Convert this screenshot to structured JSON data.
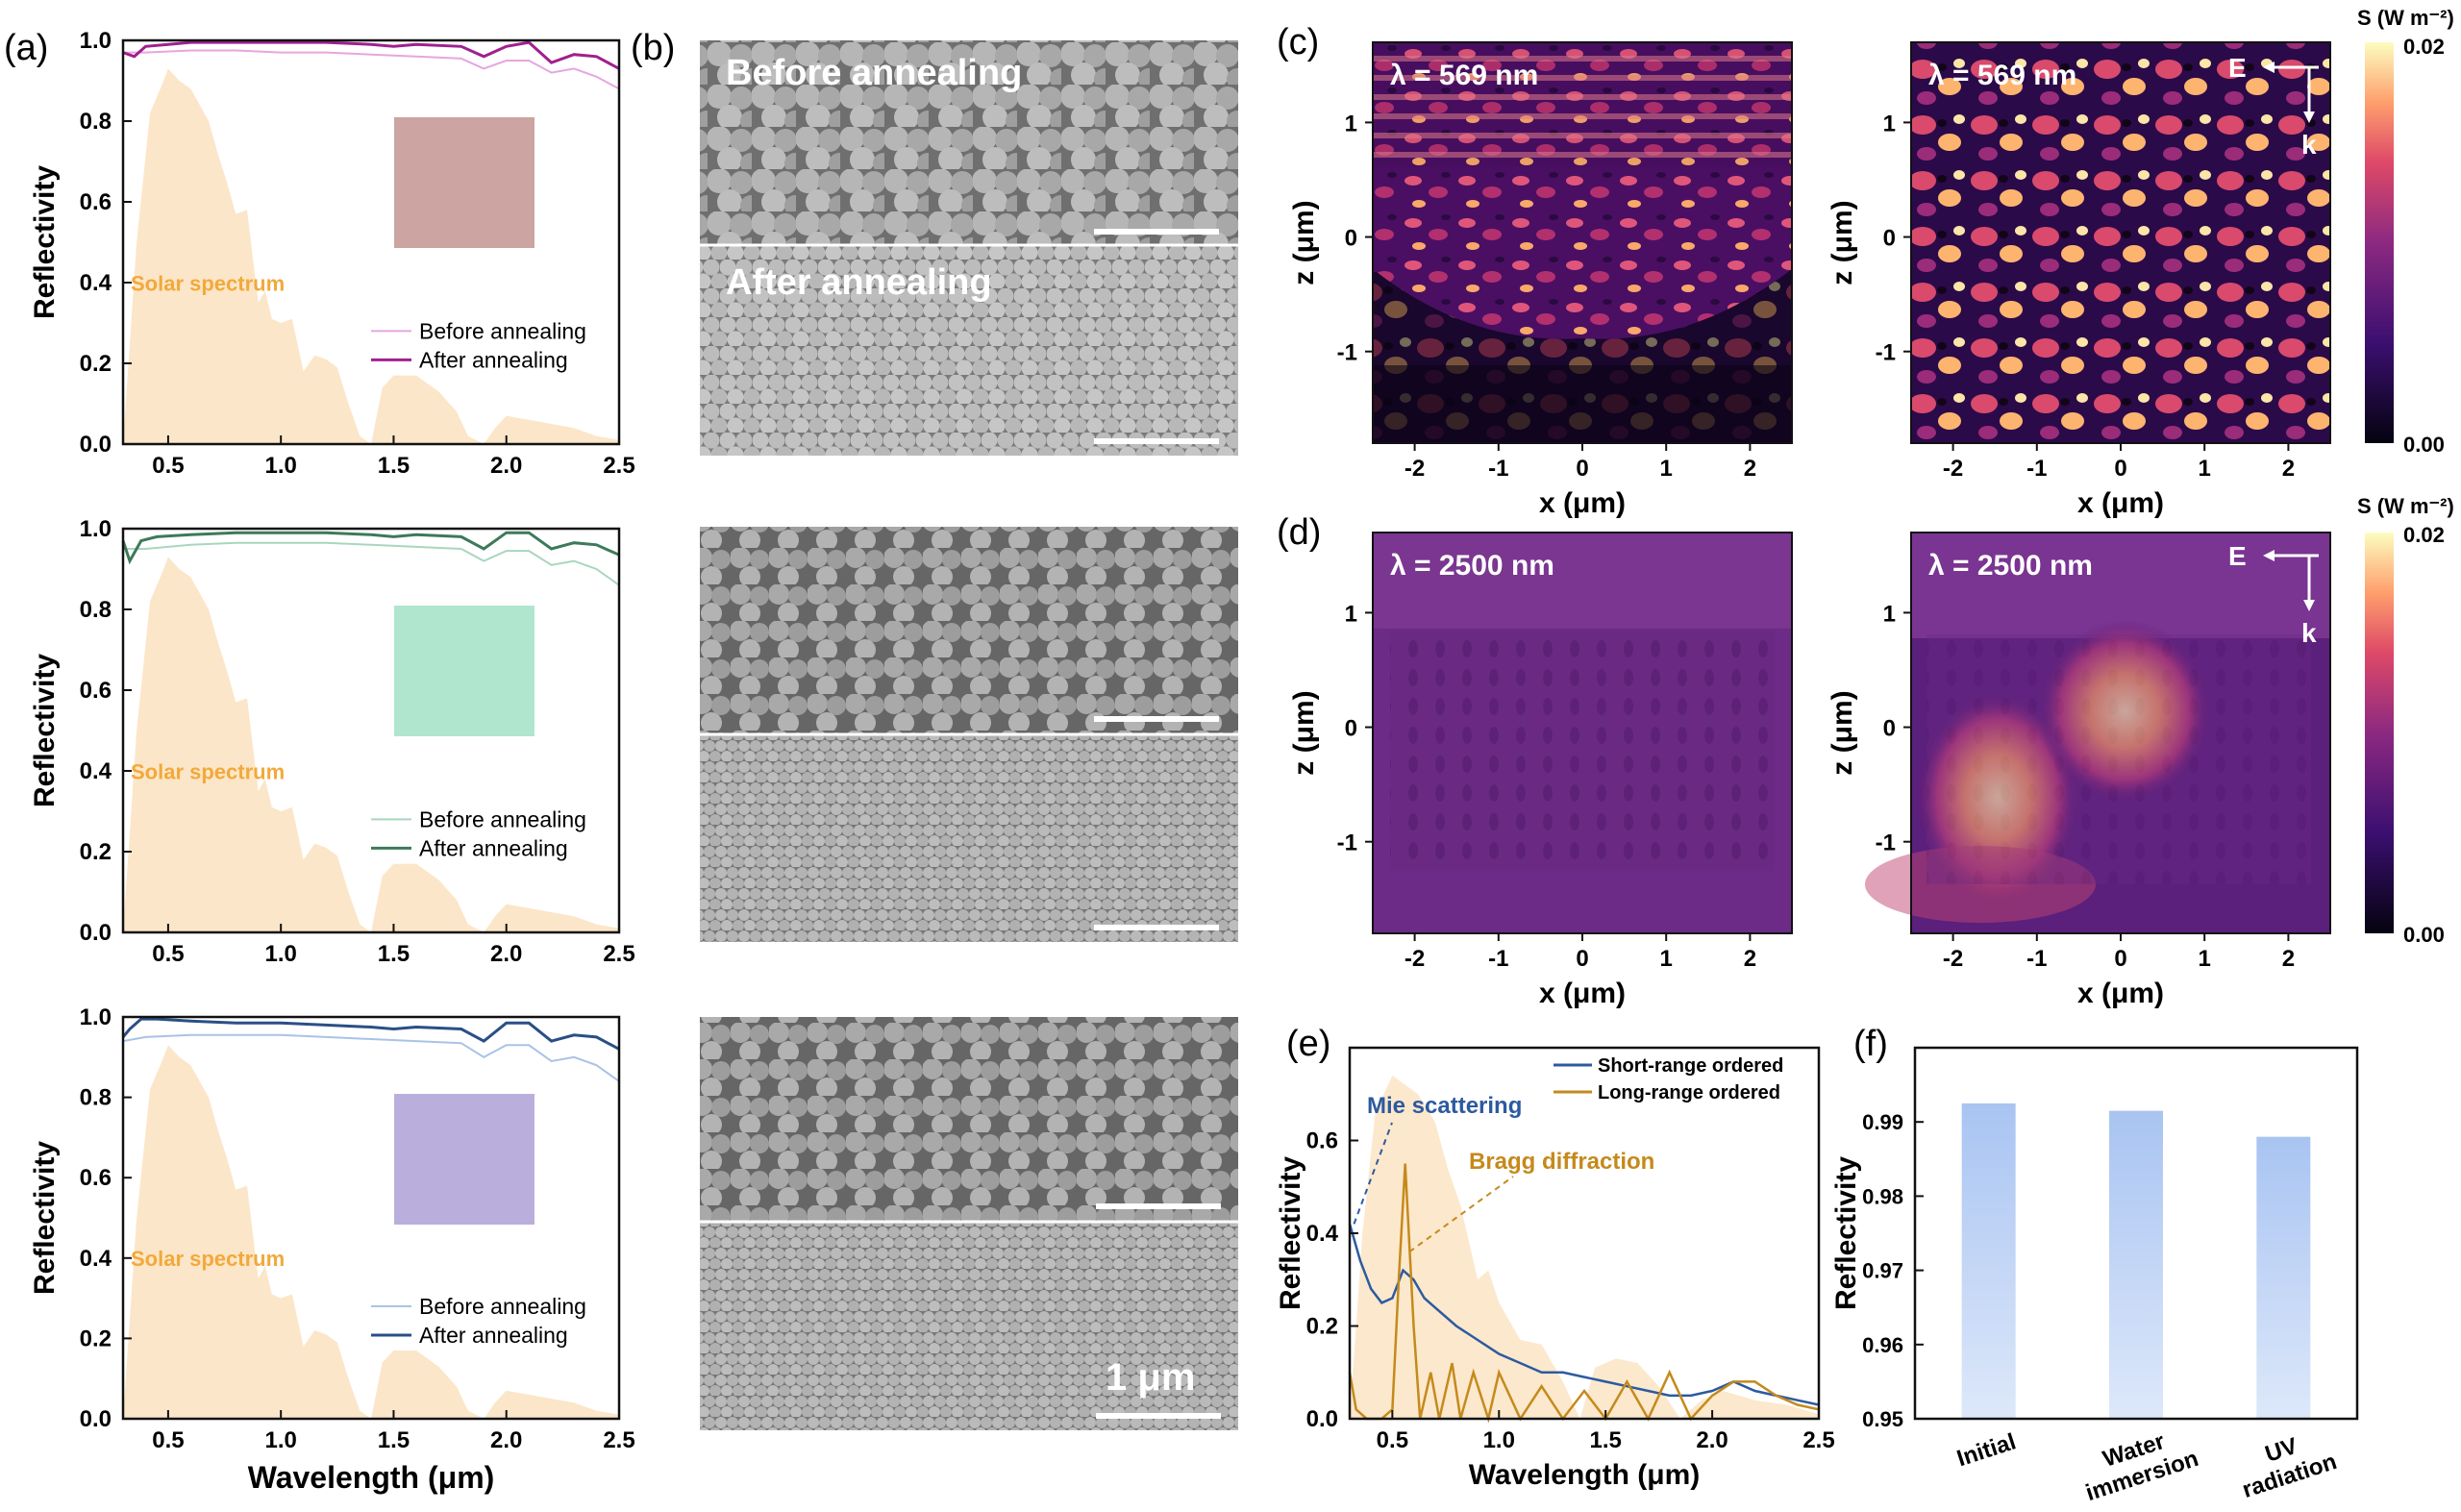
{
  "panel_labels": {
    "a": "(a)",
    "b": "(b)",
    "c": "(c)",
    "d": "(d)",
    "e": "(e)",
    "f": "(f)"
  },
  "panel_a": {
    "ylabel": "Reflectivity",
    "xlabel": "Wavelength (μm)",
    "solar_label": "Solar spectrum",
    "legend": {
      "before": "Before annealing",
      "after": "After annealing"
    },
    "xticks": [
      "0.5",
      "1.0",
      "1.5",
      "2.0",
      "2.5"
    ],
    "yticks": [
      "0.0",
      "0.2",
      "0.4",
      "0.6",
      "0.8",
      "1.0"
    ],
    "subplots": [
      {
        "after_color": "#a0208f",
        "before_color": "#e6a6e0",
        "swatch_color": "#c79a97"
      },
      {
        "after_color": "#3c7a5a",
        "before_color": "#a9d6bf",
        "swatch_color": "#a9e3c9"
      },
      {
        "after_color": "#2a4f86",
        "before_color": "#a9c3e6",
        "swatch_color": "#b2a6d8"
      }
    ]
  },
  "panel_b": {
    "before_label": "Before annealing",
    "after_label": "After annealing",
    "scale_label": "1 μm"
  },
  "panel_c": {
    "left_label": "λ = 569 nm",
    "right_label": "λ = 569 nm",
    "xlabel": "x (μm)",
    "ylabel": "z (μm)",
    "xticks": [
      "-2",
      "-1",
      "0",
      "1",
      "2"
    ],
    "yticks": [
      "1",
      "0",
      "-1"
    ],
    "colorbar_title": "S (W m⁻²)",
    "colorbar_max": "0.02",
    "colorbar_min": "0.00",
    "e_label": "E",
    "k_label": "k"
  },
  "panel_d": {
    "left_label": "λ = 2500 nm",
    "right_label": "λ = 2500 nm",
    "xlabel": "x (μm)",
    "ylabel": "z (μm)",
    "xticks": [
      "-2",
      "-1",
      "0",
      "1",
      "2"
    ],
    "yticks": [
      "1",
      "0",
      "-1"
    ],
    "colorbar_title": "S (W m⁻²)",
    "colorbar_max": "0.02",
    "colorbar_min": "0.00",
    "e_label": "E",
    "k_label": "k"
  },
  "chart_data": [
    {
      "type": "line",
      "panel": "a",
      "xlabel": "Wavelength (μm)",
      "ylabel": "Reflectivity",
      "xlim": [
        0.3,
        2.5
      ],
      "ylim": [
        0.0,
        1.0
      ],
      "series": [
        {
          "name": "Before annealing",
          "x": [
            0.3,
            0.4,
            0.6,
            0.8,
            1.0,
            1.2,
            1.4,
            1.6,
            1.8,
            1.9,
            2.0,
            2.1,
            2.2,
            2.3,
            2.4,
            2.5
          ],
          "y": [
            0.97,
            0.97,
            0.975,
            0.975,
            0.97,
            0.97,
            0.965,
            0.96,
            0.955,
            0.93,
            0.95,
            0.95,
            0.92,
            0.93,
            0.91,
            0.88
          ]
        },
        {
          "name": "After annealing",
          "x": [
            0.3,
            0.35,
            0.4,
            0.5,
            0.6,
            0.8,
            1.0,
            1.2,
            1.4,
            1.5,
            1.6,
            1.8,
            1.9,
            2.0,
            2.1,
            2.2,
            2.3,
            2.4,
            2.5
          ],
          "y": [
            0.97,
            0.96,
            0.985,
            0.99,
            0.995,
            0.995,
            0.995,
            0.995,
            0.99,
            0.985,
            0.99,
            0.985,
            0.96,
            0.985,
            0.995,
            0.945,
            0.965,
            0.96,
            0.93
          ]
        }
      ]
    },
    {
      "type": "line",
      "panel": "a-2",
      "xlim": [
        0.3,
        2.5
      ],
      "ylim": [
        0.0,
        1.0
      ],
      "series": [
        {
          "name": "Before annealing",
          "x": [
            0.3,
            0.4,
            0.6,
            0.8,
            1.0,
            1.2,
            1.4,
            1.6,
            1.8,
            1.9,
            2.0,
            2.1,
            2.2,
            2.3,
            2.4,
            2.5
          ],
          "y": [
            0.95,
            0.95,
            0.96,
            0.965,
            0.965,
            0.965,
            0.96,
            0.955,
            0.95,
            0.92,
            0.945,
            0.945,
            0.91,
            0.92,
            0.9,
            0.86
          ]
        },
        {
          "name": "After annealing",
          "x": [
            0.3,
            0.33,
            0.38,
            0.45,
            0.6,
            0.8,
            1.0,
            1.2,
            1.4,
            1.5,
            1.6,
            1.8,
            1.9,
            2.0,
            2.1,
            2.2,
            2.3,
            2.4,
            2.5
          ],
          "y": [
            0.97,
            0.92,
            0.97,
            0.98,
            0.985,
            0.99,
            0.99,
            0.99,
            0.985,
            0.98,
            0.985,
            0.98,
            0.95,
            0.99,
            0.99,
            0.95,
            0.965,
            0.96,
            0.935
          ]
        }
      ]
    },
    {
      "type": "line",
      "panel": "a-3",
      "xlim": [
        0.3,
        2.5
      ],
      "ylim": [
        0.0,
        1.0
      ],
      "series": [
        {
          "name": "Before annealing",
          "x": [
            0.3,
            0.4,
            0.6,
            0.8,
            1.0,
            1.2,
            1.4,
            1.6,
            1.8,
            1.9,
            2.0,
            2.1,
            2.2,
            2.3,
            2.4,
            2.5
          ],
          "y": [
            0.94,
            0.95,
            0.955,
            0.955,
            0.955,
            0.95,
            0.945,
            0.94,
            0.935,
            0.9,
            0.93,
            0.93,
            0.89,
            0.9,
            0.88,
            0.84
          ]
        },
        {
          "name": "After annealing",
          "x": [
            0.3,
            0.33,
            0.38,
            0.45,
            0.6,
            0.8,
            1.0,
            1.2,
            1.4,
            1.5,
            1.6,
            1.8,
            1.9,
            2.0,
            2.1,
            2.2,
            2.3,
            2.4,
            2.5
          ],
          "y": [
            0.95,
            0.97,
            0.995,
            0.995,
            0.99,
            0.985,
            0.985,
            0.98,
            0.975,
            0.97,
            0.975,
            0.97,
            0.94,
            0.985,
            0.985,
            0.94,
            0.955,
            0.95,
            0.92
          ]
        }
      ]
    },
    {
      "type": "line",
      "panel": "e",
      "xlabel": "Wavelength (μm)",
      "ylabel": "Reflectivity",
      "xlim": [
        0.3,
        2.5
      ],
      "ylim": [
        0.0,
        0.8
      ],
      "xticks": [
        "0.5",
        "1.0",
        "1.5",
        "2.0",
        "2.5"
      ],
      "yticks": [
        "0.0",
        "0.2",
        "0.4",
        "0.6"
      ],
      "annotations": [
        "Mie scattering",
        "Bragg diffraction"
      ],
      "series": [
        {
          "name": "Short-range ordered",
          "color": "#2c5aa0",
          "x": [
            0.3,
            0.35,
            0.4,
            0.45,
            0.5,
            0.55,
            0.6,
            0.65,
            0.7,
            0.8,
            0.9,
            1.0,
            1.1,
            1.2,
            1.3,
            1.4,
            1.5,
            1.6,
            1.7,
            1.8,
            1.9,
            2.0,
            2.1,
            2.2,
            2.3,
            2.4,
            2.5
          ],
          "y": [
            0.42,
            0.34,
            0.28,
            0.25,
            0.26,
            0.32,
            0.3,
            0.26,
            0.24,
            0.2,
            0.17,
            0.14,
            0.12,
            0.1,
            0.1,
            0.09,
            0.08,
            0.07,
            0.06,
            0.05,
            0.05,
            0.06,
            0.08,
            0.06,
            0.05,
            0.04,
            0.03
          ]
        },
        {
          "name": "Long-range ordered",
          "color": "#c58a1c",
          "x": [
            0.3,
            0.33,
            0.38,
            0.45,
            0.5,
            0.53,
            0.56,
            0.6,
            0.63,
            0.68,
            0.72,
            0.78,
            0.82,
            0.88,
            0.95,
            1.0,
            1.1,
            1.2,
            1.3,
            1.4,
            1.5,
            1.6,
            1.7,
            1.8,
            1.9,
            2.0,
            2.1,
            2.2,
            2.3,
            2.4,
            2.5
          ],
          "y": [
            0.1,
            0.02,
            0.0,
            0.0,
            0.02,
            0.3,
            0.55,
            0.2,
            0.0,
            0.1,
            0.0,
            0.12,
            0.0,
            0.1,
            0.0,
            0.1,
            0.0,
            0.07,
            0.0,
            0.06,
            0.0,
            0.08,
            0.0,
            0.1,
            0.0,
            0.05,
            0.08,
            0.08,
            0.05,
            0.03,
            0.02
          ]
        }
      ]
    },
    {
      "type": "bar",
      "panel": "f",
      "ylabel": "Reflectivity",
      "categories": [
        "Initial",
        "Water immersion",
        "UV radiation"
      ],
      "category_lines": [
        [
          "Initial"
        ],
        [
          "Water",
          "immersion"
        ],
        [
          "UV",
          "radiation"
        ]
      ],
      "values": [
        0.9925,
        0.9915,
        0.988
      ],
      "ylim": [
        0.95,
        1.0
      ],
      "yticks": [
        "0.95",
        "0.96",
        "0.97",
        "0.98",
        "0.99"
      ]
    }
  ]
}
